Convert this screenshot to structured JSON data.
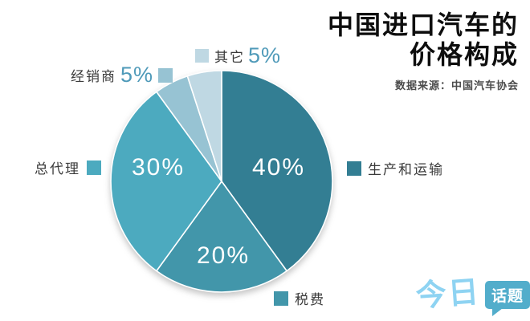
{
  "header": {
    "title_line1": "中国进口汽车的",
    "title_line2": "价格构成",
    "source": "数据来源：中国汽车协会"
  },
  "chart_data": {
    "type": "pie",
    "title": "中国进口汽车的价格构成",
    "source_note": "数据来源：中国汽车协会",
    "start_angle_deg": 0,
    "direction": "clockwise",
    "total": 100,
    "slices": [
      {
        "label": "生产和运输",
        "value": 40,
        "display": "40%",
        "color": "#337e93",
        "label_position": "right-outside",
        "pct_inside": true
      },
      {
        "label": "税费",
        "value": 20,
        "display": "20%",
        "color": "#4296aa",
        "label_position": "bottom-outside",
        "pct_inside": true
      },
      {
        "label": "总代理",
        "value": 30,
        "display": "30%",
        "color": "#4caabf",
        "label_position": "left-outside",
        "pct_inside": true
      },
      {
        "label": "经销商",
        "value": 5,
        "display": "5%",
        "color": "#97c3d3",
        "label_position": "top-left-outside",
        "pct_inside": false
      },
      {
        "label": "其它",
        "value": 5,
        "display": "5%",
        "color": "#bfd8e3",
        "label_position": "top-outside",
        "pct_inside": false
      }
    ]
  },
  "logo": {
    "brand_light": "今日",
    "brand_bubble": "话题"
  }
}
